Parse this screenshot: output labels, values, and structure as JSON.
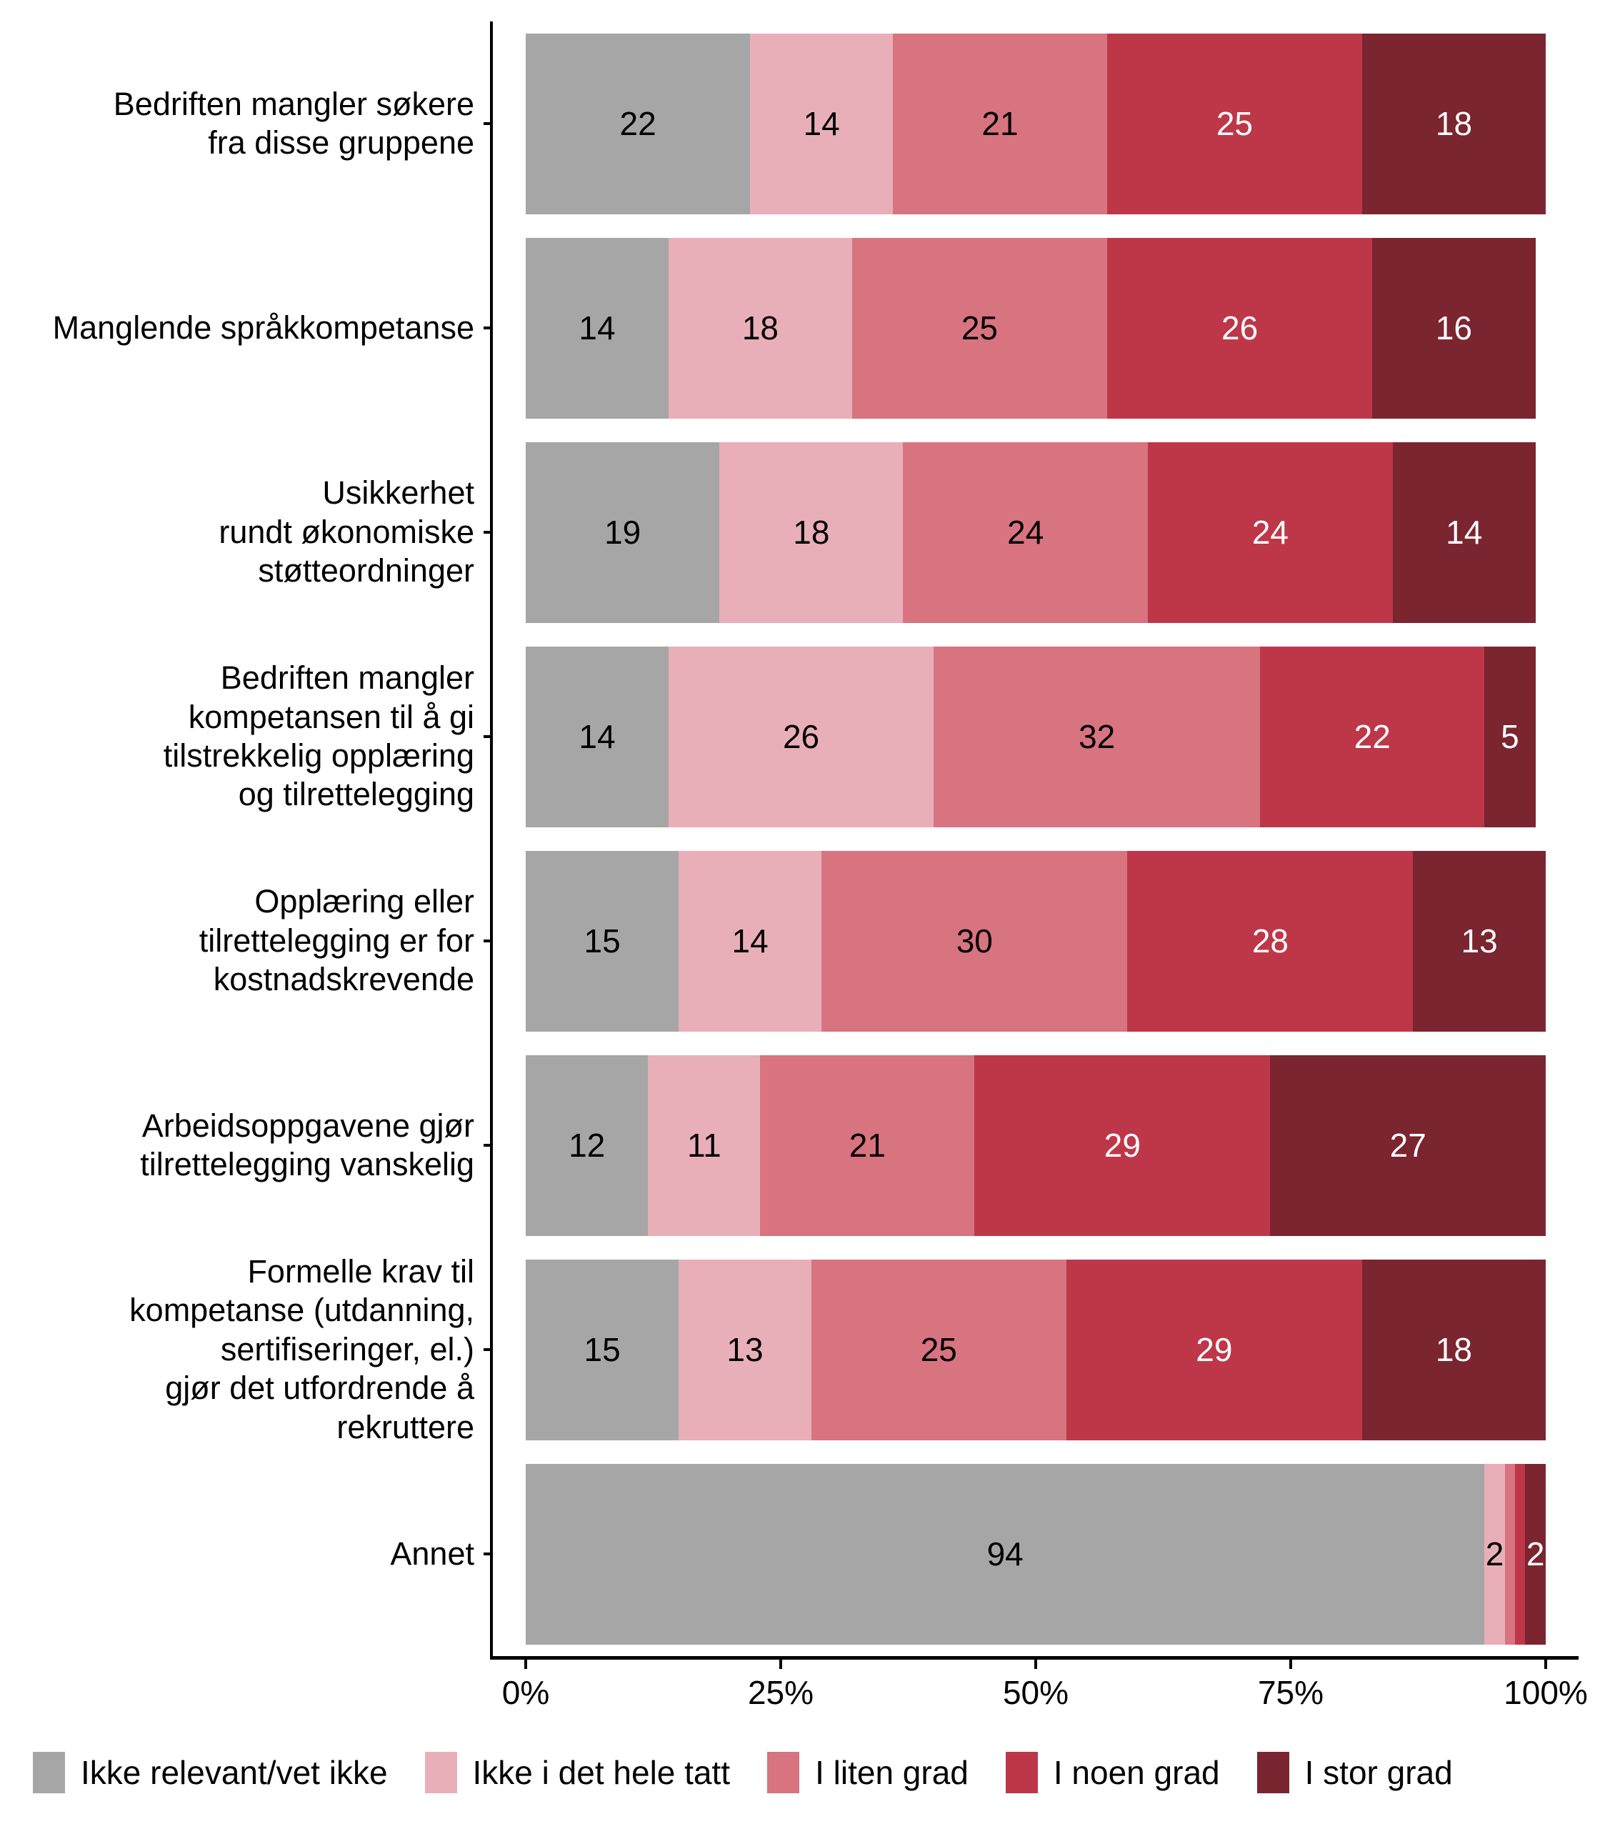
{
  "chart_data": {
    "type": "bar",
    "orientation": "horizontal",
    "stacked": true,
    "value_unit": "percent",
    "xlim": [
      0,
      100
    ],
    "grid": false,
    "legend_position": "bottom",
    "x_axis": {
      "tick_values": [
        0,
        25,
        50,
        75,
        100
      ],
      "tick_labels": [
        "0%",
        "25%",
        "50%",
        "75%",
        "100%"
      ]
    },
    "series": [
      {
        "name": "Ikke relevant/vet ikke",
        "color": "#A6A6A6",
        "label_color": "#000000"
      },
      {
        "name": "Ikke i det hele tatt",
        "color": "#E9AFB8",
        "label_color": "#000000"
      },
      {
        "name": "I liten grad",
        "color": "#D87380",
        "label_color": "#000000"
      },
      {
        "name": "I noen grad",
        "color": "#BE3749",
        "label_color": "#FFFFFF"
      },
      {
        "name": "I stor grad",
        "color": "#7A2530",
        "label_color": "#FFFFFF"
      }
    ],
    "categories": [
      {
        "label": "Bedriften mangler søkere fra disse gruppene",
        "label_lines": [
          "Bedriften mangler søkere",
          "fra disse gruppene"
        ],
        "values": [
          22,
          14,
          21,
          25,
          18
        ],
        "value_labels": [
          "22",
          "14",
          "21",
          "25",
          "18"
        ]
      },
      {
        "label": "Manglende språkkompetanse",
        "label_lines": [
          "Manglende språkkompetanse"
        ],
        "values": [
          14,
          18,
          25,
          26,
          16
        ],
        "value_labels": [
          "14",
          "18",
          "25",
          "26",
          "16"
        ]
      },
      {
        "label": "Usikkerhet rundt økonomiske støtteordninger",
        "label_lines": [
          "Usikkerhet",
          "rundt økonomiske",
          "støtteordninger"
        ],
        "values": [
          19,
          18,
          24,
          24,
          14
        ],
        "value_labels": [
          "19",
          "18",
          "24",
          "24",
          "14"
        ]
      },
      {
        "label": "Bedriften mangler kompetansen til å gi tilstrekkelig opplæring og tilrettelegging",
        "label_lines": [
          "Bedriften mangler",
          "kompetansen til å gi",
          "tilstrekkelig opplæring",
          "og tilrettelegging"
        ],
        "values": [
          14,
          26,
          32,
          22,
          5
        ],
        "value_labels": [
          "14",
          "26",
          "32",
          "22",
          "5"
        ]
      },
      {
        "label": "Opplæring eller tilrettelegging er for kostnadskrevende",
        "label_lines": [
          "Opplæring eller",
          "tilrettelegging er for",
          "kostnadskrevende"
        ],
        "values": [
          15,
          14,
          30,
          28,
          13
        ],
        "value_labels": [
          "15",
          "14",
          "30",
          "28",
          "13"
        ]
      },
      {
        "label": "Arbeidsoppgavene gjør tilrettelegging vanskelig",
        "label_lines": [
          "Arbeidsoppgavene gjør",
          "tilrettelegging vanskelig"
        ],
        "values": [
          12,
          11,
          21,
          29,
          27
        ],
        "value_labels": [
          "12",
          "11",
          "21",
          "29",
          "27"
        ]
      },
      {
        "label": "Formelle krav til kompetanse (utdanning, sertifiseringer, el.) gjør det utfordrende å rekruttere",
        "label_lines": [
          "Formelle krav til",
          "kompetanse (utdanning,",
          "sertifiseringer, el.)",
          "gjør det utfordrende å",
          "rekruttere"
        ],
        "values": [
          15,
          13,
          25,
          29,
          18
        ],
        "value_labels": [
          "15",
          "13",
          "25",
          "29",
          "18"
        ]
      },
      {
        "label": "Annet",
        "label_lines": [
          "Annet"
        ],
        "values": [
          94,
          2,
          1,
          1,
          2
        ],
        "value_labels": [
          "94",
          "2",
          "",
          "",
          "2"
        ]
      }
    ]
  },
  "style": {
    "axis_color": "#000000",
    "background": "#FFFFFF",
    "text_color": "#000000"
  }
}
